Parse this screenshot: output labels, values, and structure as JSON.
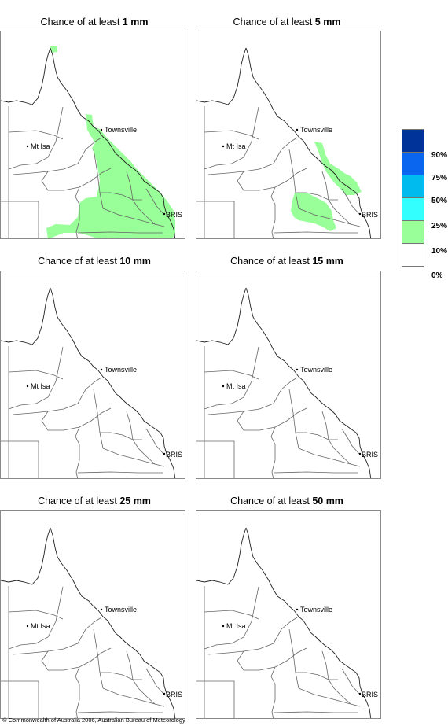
{
  "panels": [
    {
      "prefix": "Chance of at least ",
      "amount": "1 mm"
    },
    {
      "prefix": "Chance of at least ",
      "amount": "5 mm"
    },
    {
      "prefix": "Chance of at least ",
      "amount": "10 mm"
    },
    {
      "prefix": "Chance of at least ",
      "amount": "15 mm"
    },
    {
      "prefix": "Chance of at least ",
      "amount": "25 mm"
    },
    {
      "prefix": "Chance of at least ",
      "amount": "50 mm"
    }
  ],
  "places": {
    "townsville": "Townsville",
    "mt_isa": "Mt Isa",
    "bris": "BRIS"
  },
  "legend": {
    "colors": [
      "#003399",
      "#0a66ee",
      "#00bbee",
      "#33ffff",
      "#99ff99",
      "#ffffff"
    ],
    "labels": [
      "90%",
      "75%",
      "50%",
      "25%",
      "10%",
      "0%"
    ]
  },
  "fill_color": "#99ff99",
  "copyright": "© Commonwealth of Australia 2006, Australian Bureau of Meteorology"
}
